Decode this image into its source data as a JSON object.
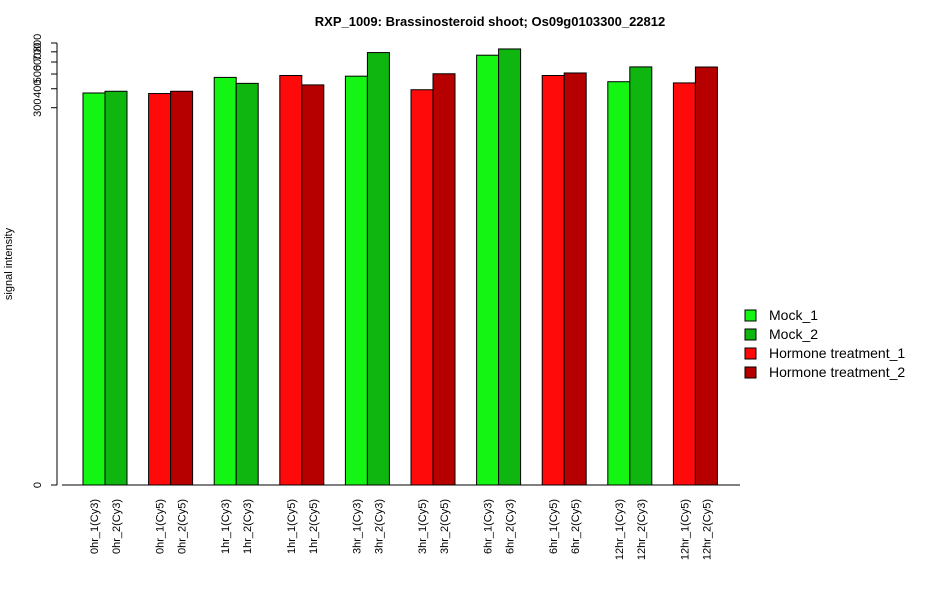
{
  "chart_data": {
    "type": "bar",
    "title": "RXP_1009: Brassinosteroid shoot; Os09g0103300_22812",
    "xlabel": "",
    "ylabel": "signal intensity",
    "y_ticks": [
      0,
      300,
      400,
      500,
      600,
      700,
      800
    ],
    "y_scale": "log(y+1) (axis compressed below 300)",
    "ylim": [
      0,
      800
    ],
    "grid": false,
    "legend_position": "right",
    "colors": {
      "Mock_1": "#14f514",
      "Mock_2": "#0fb60f",
      "Hormone treatment_1": "#ff0a0a",
      "Hormone treatment_2": "#b60000"
    },
    "legend": [
      "Mock_1",
      "Mock_2",
      "Hormone treatment_1",
      "Hormone treatment_2"
    ],
    "bars": [
      {
        "label": "0hr_1(Cy3)",
        "series": "Mock_1",
        "value": 375
      },
      {
        "label": "0hr_2(Cy3)",
        "series": "Mock_2",
        "value": 385
      },
      {
        "label": "0hr_1(Cy5)",
        "series": "Hormone treatment_1",
        "value": 372
      },
      {
        "label": "0hr_2(Cy5)",
        "series": "Hormone treatment_2",
        "value": 385
      },
      {
        "label": "1hr_1(Cy3)",
        "series": "Mock_1",
        "value": 475
      },
      {
        "label": "1hr_2(Cy3)",
        "series": "Mock_2",
        "value": 434
      },
      {
        "label": "1hr_1(Cy5)",
        "series": "Hormone treatment_1",
        "value": 489
      },
      {
        "label": "1hr_2(Cy5)",
        "series": "Hormone treatment_2",
        "value": 424
      },
      {
        "label": "3hr_1(Cy3)",
        "series": "Mock_1",
        "value": 484
      },
      {
        "label": "3hr_2(Cy3)",
        "series": "Mock_2",
        "value": 692
      },
      {
        "label": "3hr_1(Cy5)",
        "series": "Hormone treatment_1",
        "value": 394
      },
      {
        "label": "3hr_2(Cy5)",
        "series": "Hormone treatment_2",
        "value": 502
      },
      {
        "label": "6hr_1(Cy3)",
        "series": "Mock_1",
        "value": 665
      },
      {
        "label": "6hr_2(Cy3)",
        "series": "Mock_2",
        "value": 731
      },
      {
        "label": "6hr_1(Cy5)",
        "series": "Hormone treatment_1",
        "value": 489
      },
      {
        "label": "6hr_2(Cy5)",
        "series": "Hormone treatment_2",
        "value": 508
      },
      {
        "label": "12hr_1(Cy3)",
        "series": "Mock_1",
        "value": 445
      },
      {
        "label": "12hr_2(Cy3)",
        "series": "Mock_2",
        "value": 557
      },
      {
        "label": "12hr_1(Cy5)",
        "series": "Hormone treatment_1",
        "value": 437
      },
      {
        "label": "12hr_2(Cy5)",
        "series": "Hormone treatment_2",
        "value": 556
      }
    ]
  }
}
